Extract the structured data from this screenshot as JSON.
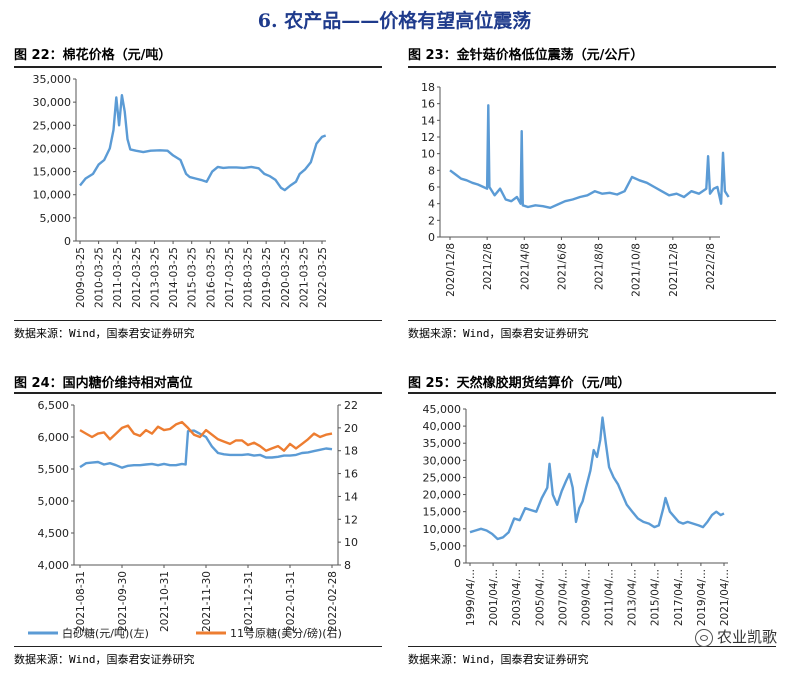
{
  "page": {
    "title": "6.  农产品——价格有望高位震荡",
    "watermark": "农业凯歌"
  },
  "panels": [
    {
      "title": "图 22：棉花价格（元/吨）",
      "source": "数据来源：Wind，国泰君安证券研究"
    },
    {
      "title": "图 23：金针菇价格低位震荡（元/公斤）",
      "source": "数据来源：Wind，国泰君安证券研究"
    },
    {
      "title": "图 24：国内糖价维持相对高位",
      "source": "数据来源：Wind，国泰君安证券研究"
    },
    {
      "title": "图 25：天然橡胶期货结算价（元/吨）",
      "source": "数据来源：Wind，国泰君安证券研究"
    }
  ],
  "colors": {
    "blue": "#5b9bd5",
    "orange": "#ed7d31",
    "title_blue": "#1f3b8c"
  },
  "chart_data": [
    {
      "type": "line",
      "x_ticks": [
        "2009-03-25",
        "2010-03-25",
        "2011-03-25",
        "2012-03-25",
        "2013-03-25",
        "2014-03-25",
        "2015-03-25",
        "2016-03-25",
        "2017-03-25",
        "2018-03-25",
        "2019-03-25",
        "2020-03-25",
        "2021-03-25",
        "2022-03-25"
      ],
      "y_ticks": [
        "0",
        "5,000",
        "10,000",
        "15,000",
        "20,000",
        "25,000",
        "30,000",
        "35,000"
      ],
      "ylim": [
        0,
        35000
      ],
      "series": [
        {
          "color": "#5b9bd5",
          "x": [
            2009.2,
            2009.5,
            2009.9,
            2010.2,
            2010.5,
            2010.8,
            2011.0,
            2011.15,
            2011.3,
            2011.45,
            2011.6,
            2011.75,
            2011.9,
            2012.2,
            2012.6,
            2013.0,
            2013.5,
            2013.9,
            2014.2,
            2014.6,
            2014.9,
            2015.1,
            2015.4,
            2015.7,
            2016.0,
            2016.3,
            2016.6,
            2016.9,
            2017.2,
            2017.6,
            2018.0,
            2018.4,
            2018.8,
            2019.1,
            2019.4,
            2019.7,
            2020.0,
            2020.2,
            2020.5,
            2020.8,
            2021.0,
            2021.3,
            2021.6,
            2021.9,
            2022.2,
            2022.4
          ],
          "y": [
            12000,
            13500,
            14500,
            16500,
            17500,
            20000,
            24000,
            31000,
            25000,
            31500,
            28000,
            22000,
            19800,
            19500,
            19200,
            19500,
            19600,
            19500,
            18500,
            17500,
            14500,
            13800,
            13500,
            13200,
            12800,
            15000,
            16000,
            15800,
            15900,
            15900,
            15800,
            16000,
            15700,
            14500,
            14000,
            13200,
            11500,
            11000,
            12000,
            12800,
            14500,
            15500,
            17000,
            21000,
            22500,
            22800
          ]
        }
      ]
    },
    {
      "type": "line",
      "x_ticks": [
        "2020/12/8",
        "2021/2/8",
        "2021/4/8",
        "2021/6/8",
        "2021/8/8",
        "2021/10/8",
        "2021/12/8",
        "2022/2/8"
      ],
      "y_ticks": [
        "0",
        "2",
        "4",
        "6",
        "8",
        "10",
        "12",
        "14",
        "16",
        "18"
      ],
      "ylim": [
        0,
        18
      ],
      "series": [
        {
          "color": "#5b9bd5",
          "x": [
            0,
            0.15,
            0.3,
            0.45,
            0.6,
            0.75,
            0.9,
            1.0,
            1.03,
            1.06,
            1.2,
            1.35,
            1.5,
            1.65,
            1.8,
            1.9,
            1.93,
            1.96,
            2.1,
            2.3,
            2.5,
            2.7,
            2.9,
            3.1,
            3.3,
            3.5,
            3.7,
            3.9,
            4.1,
            4.3,
            4.5,
            4.7,
            4.9,
            5.1,
            5.3,
            5.5,
            5.7,
            5.9,
            6.1,
            6.3,
            6.5,
            6.7,
            6.9,
            6.95,
            7.0,
            7.1,
            7.2,
            7.3,
            7.35,
            7.4,
            7.5
          ],
          "y": [
            8,
            7.5,
            7,
            6.8,
            6.5,
            6.3,
            6,
            5.8,
            15.8,
            6,
            5,
            5.8,
            4.5,
            4.3,
            4.8,
            4,
            12.7,
            3.8,
            3.6,
            3.8,
            3.7,
            3.5,
            3.9,
            4.3,
            4.5,
            4.8,
            5.0,
            5.5,
            5.2,
            5.3,
            5.1,
            5.5,
            7.2,
            6.8,
            6.5,
            6.0,
            5.5,
            5.0,
            5.2,
            4.8,
            5.5,
            5.2,
            5.8,
            9.7,
            5.2,
            5.8,
            6.0,
            4.0,
            10.1,
            5.5,
            4.8
          ]
        }
      ]
    },
    {
      "type": "line",
      "legend": [
        "白砂糖(元/吨)(左)",
        "11号原糖(美分/磅)(右)"
      ],
      "x_ticks": [
        "2021-08-31",
        "2021-09-30",
        "2021-10-31",
        "2021-11-30",
        "2021-12-31",
        "2022-01-31",
        "2022-02-28"
      ],
      "y_left_ticks": [
        "4,000",
        "4,500",
        "5,000",
        "5,500",
        "6,000",
        "6,500"
      ],
      "y_right_ticks": [
        "8",
        "10",
        "12",
        "14",
        "16",
        "18",
        "20",
        "22"
      ],
      "ylim": [
        4000,
        6500
      ],
      "y2lim": [
        8,
        22
      ],
      "series": [
        {
          "name": "白砂糖(元/吨)(左)",
          "color": "#5b9bd5",
          "axis": "left",
          "x": [
            0,
            5,
            10,
            15,
            20,
            25,
            30,
            35,
            40,
            45,
            50,
            55,
            60,
            65,
            70,
            75,
            80,
            85,
            88,
            90,
            95,
            100,
            105,
            110,
            115,
            120,
            125,
            130,
            135,
            140,
            145,
            150,
            155,
            160,
            165,
            170,
            175,
            180,
            185,
            190,
            195,
            200,
            205,
            210
          ],
          "y": [
            5530,
            5590,
            5600,
            5610,
            5570,
            5590,
            5560,
            5520,
            5550,
            5560,
            5560,
            5570,
            5580,
            5560,
            5580,
            5560,
            5560,
            5580,
            5570,
            6090,
            6100,
            6050,
            6000,
            5850,
            5750,
            5730,
            5720,
            5720,
            5720,
            5730,
            5710,
            5720,
            5680,
            5680,
            5690,
            5710,
            5710,
            5720,
            5750,
            5760,
            5780,
            5800,
            5820,
            5810
          ]
        },
        {
          "name": "11号原糖(美分/磅)(右)",
          "color": "#ed7d31",
          "axis": "right",
          "x": [
            0,
            5,
            10,
            15,
            20,
            25,
            30,
            35,
            40,
            45,
            50,
            55,
            60,
            65,
            70,
            75,
            80,
            85,
            90,
            95,
            100,
            105,
            110,
            115,
            120,
            125,
            130,
            135,
            140,
            145,
            150,
            155,
            160,
            165,
            170,
            175,
            180,
            185,
            190,
            195,
            200,
            205,
            210
          ],
          "y": [
            19.8,
            19.5,
            19.2,
            19.5,
            19.6,
            19.0,
            19.5,
            20.0,
            20.2,
            19.5,
            19.3,
            19.8,
            19.5,
            20.1,
            19.8,
            19.9,
            20.3,
            20.5,
            20.0,
            19.4,
            19.2,
            19.8,
            19.4,
            19.0,
            18.8,
            18.6,
            18.9,
            18.9,
            18.5,
            18.7,
            18.4,
            18.0,
            18.2,
            18.4,
            18.0,
            18.6,
            18.2,
            18.6,
            19.0,
            19.5,
            19.2,
            19.4,
            19.5
          ]
        }
      ]
    },
    {
      "type": "line",
      "x_ticks": [
        "1999/04/...",
        "2001/04/...",
        "2003/04/...",
        "2005/04/...",
        "2007/04/...",
        "2009/04/...",
        "2011/04/...",
        "2013/04/...",
        "2015/04/...",
        "2017/04/...",
        "2019/04/...",
        "2021/04/..."
      ],
      "y_ticks": [
        "0",
        "5,000",
        "10,000",
        "15,000",
        "20,000",
        "25,000",
        "30,000",
        "35,000",
        "40,000",
        "45,000"
      ],
      "ylim": [
        0,
        45000
      ],
      "series": [
        {
          "color": "#5b9bd5",
          "x": [
            1999.3,
            1999.8,
            2000.3,
            2000.8,
            2001.3,
            2001.8,
            2002.3,
            2002.8,
            2003.3,
            2003.8,
            2004.3,
            2004.8,
            2005.3,
            2005.8,
            2006.3,
            2006.5,
            2006.8,
            2007.2,
            2007.6,
            2008.0,
            2008.3,
            2008.6,
            2008.9,
            2009.2,
            2009.5,
            2009.8,
            2010.2,
            2010.5,
            2010.8,
            2011.1,
            2011.3,
            2011.6,
            2011.9,
            2012.3,
            2012.7,
            2013.1,
            2013.5,
            2014.0,
            2014.5,
            2015.0,
            2015.5,
            2016.0,
            2016.4,
            2016.8,
            2017.0,
            2017.4,
            2017.8,
            2018.2,
            2018.6,
            2019.0,
            2019.5,
            2020.0,
            2020.4,
            2020.8,
            2021.2,
            2021.6,
            2022.0,
            2022.3
          ],
          "y": [
            9000,
            9500,
            10000,
            9500,
            8500,
            7000,
            7500,
            9000,
            13000,
            12500,
            16000,
            15500,
            15000,
            19000,
            22000,
            29000,
            20000,
            17000,
            21000,
            24000,
            26000,
            22000,
            12000,
            16000,
            18000,
            22000,
            27000,
            33000,
            31000,
            36000,
            42500,
            35000,
            28000,
            25000,
            23000,
            20000,
            17000,
            15000,
            13000,
            12000,
            11500,
            10500,
            11000,
            16000,
            19000,
            15000,
            13500,
            12000,
            11500,
            12000,
            11500,
            11000,
            10500,
            12000,
            14000,
            15000,
            14000,
            14500
          ]
        }
      ]
    }
  ]
}
